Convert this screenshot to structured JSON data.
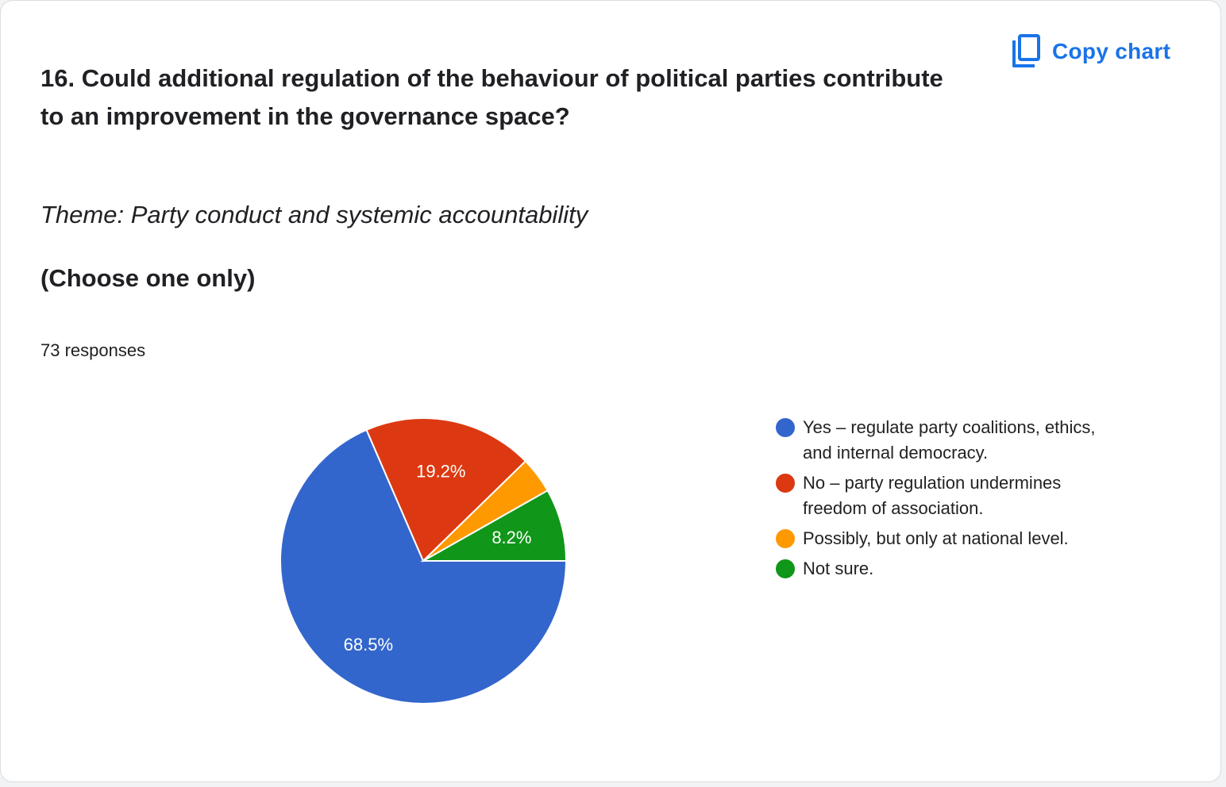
{
  "card": {
    "title_lines": [
      "16. Could additional regulation of the behaviour of political parties contribute",
      "to an improvement in the governance space?"
    ],
    "theme": "Theme: Party conduct and systemic accountability",
    "instruction": "(Choose one only)",
    "responses": "73 responses"
  },
  "toolbar": {
    "copy_label": "Copy chart",
    "copy_icon": "copy-icon"
  },
  "colors": {
    "accent": "#1a73e8"
  },
  "chart_data": {
    "type": "pie",
    "start_angle": "3 o'clock, clockwise",
    "slices": [
      {
        "label": "Yes – regulate party coalitions, ethics, and internal democracy.",
        "legend_lines": [
          "Yes – regulate party coalitions, ethics,",
          "and internal democracy."
        ],
        "value": 68.5,
        "display": "68.5%",
        "color": "#3366cc",
        "label_color": "#ffffff"
      },
      {
        "label": "No – party regulation undermines freedom of association.",
        "legend_lines": [
          "No – party regulation undermines",
          "freedom of association."
        ],
        "value": 19.2,
        "display": "19.2%",
        "color": "#dc3912",
        "label_color": "#ffffff"
      },
      {
        "label": "Possibly, but only at national level.",
        "legend_lines": [
          "Possibly, but only at national level."
        ],
        "value": 4.1,
        "display": "",
        "color": "#ff9900",
        "label_color": "#ffffff"
      },
      {
        "label": "Not sure.",
        "legend_lines": [
          "Not sure."
        ],
        "value": 8.2,
        "display": "8.2%",
        "color": "#109618",
        "label_color": "#ffffff"
      }
    ],
    "legend_position": "right"
  }
}
